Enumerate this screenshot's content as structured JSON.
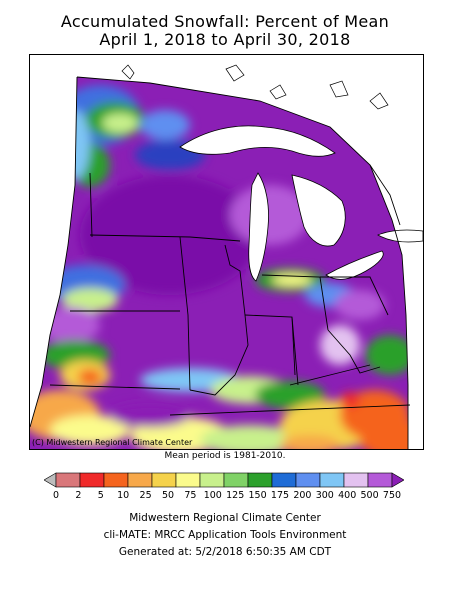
{
  "title_line1": "Accumulated Snowfall: Percent of Mean",
  "title_line2": "April 1, 2018 to April 30, 2018",
  "copyright": "(C) Midwestern Regional Climate Center",
  "mean_period": "Mean period is 1981-2010.",
  "legend": {
    "ticks": [
      "0",
      "2",
      "5",
      "10",
      "25",
      "50",
      "75",
      "100",
      "125",
      "150",
      "175",
      "200",
      "300",
      "400",
      "500",
      "750"
    ],
    "colors": [
      "#bdbdbd",
      "#d9777a",
      "#f02a2a",
      "#f5641e",
      "#f7a84a",
      "#f5d24b",
      "#fbfb8c",
      "#c8f08c",
      "#80d267",
      "#2ca02c",
      "#1f6cd6",
      "#5f8ff0",
      "#7fc6f5",
      "#e3c2f0",
      "#b45ad8",
      "#8b1fb5"
    ]
  },
  "footer": {
    "line1": "Midwestern Regional Climate Center",
    "line2": "cli-MATE: MRCC Application Tools Environment",
    "line3": "Generated at: 5/2/2018 6:50:35 AM CDT"
  }
}
